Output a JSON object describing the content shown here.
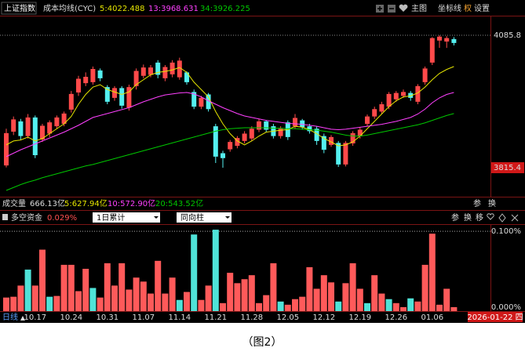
{
  "chart_data": [
    {
      "type": "candlestick",
      "symbol": "上证指数",
      "indicator": "成本均线(CYC)",
      "categories": [
        null,
        null,
        null,
        null,
        "10.17",
        null,
        null,
        null,
        null,
        "10.24",
        null,
        null,
        null,
        null,
        "10.31",
        null,
        null,
        null,
        null,
        "11.07",
        null,
        null,
        null,
        null,
        "11.14",
        null,
        null,
        null,
        null,
        "11.21",
        null,
        null,
        null,
        null,
        "11.28",
        null,
        null,
        null,
        null,
        "12.05",
        null,
        null,
        null,
        null,
        "12.12",
        null,
        null,
        null,
        null,
        "12.19",
        null,
        null,
        null,
        null,
        "12.26",
        null,
        null,
        null,
        null,
        "01.06",
        null,
        null,
        null
      ],
      "open": [
        3820,
        3889,
        3910,
        3880,
        3918,
        3873,
        3885,
        3900,
        3905,
        3934,
        3969,
        3988,
        3990,
        4014,
        3980,
        3958,
        3978,
        3938,
        3982,
        4003,
        4005,
        4030,
        3998,
        4006,
        4000,
        4010,
        3970,
        3940,
        3965,
        3900,
        3845,
        3853,
        3860,
        3870,
        3875,
        3893,
        3910,
        3900,
        3880,
        3908,
        3900,
        3912,
        3900,
        3895,
        3880,
        3862,
        3866,
        3822,
        3865,
        3880,
        3905,
        3920,
        3930,
        3940,
        3955,
        3962,
        3968,
        3950,
        3990,
        4030,
        4075,
        4073,
        4078
      ],
      "high": [
        3895,
        3920,
        3915,
        3925,
        3922,
        3905,
        3912,
        3922,
        3930,
        3972,
        4003,
        4010,
        4022,
        4018,
        3984,
        3982,
        3982,
        3985,
        4018,
        4026,
        4025,
        4035,
        4025,
        4035,
        4040,
        4012,
        3975,
        3962,
        3968,
        3905,
        3850,
        3872,
        3880,
        3890,
        3900,
        3915,
        3913,
        3905,
        3900,
        3912,
        3925,
        3915,
        3905,
        3900,
        3885,
        3882,
        3870,
        3870,
        3890,
        3898,
        3924,
        3940,
        3950,
        3970,
        3972,
        3975,
        3972,
        3986,
        4022,
        4082,
        4085.8,
        4084,
        4082
      ],
      "low": [
        3816,
        3882,
        3872,
        3875,
        3835,
        3868,
        3878,
        3895,
        3900,
        3928,
        3962,
        3982,
        3985,
        3992,
        3945,
        3952,
        3936,
        3932,
        3975,
        3998,
        4000,
        3998,
        3992,
        4000,
        3995,
        3985,
        3935,
        3935,
        3930,
        3825,
        3815.4,
        3848,
        3855,
        3865,
        3870,
        3888,
        3888,
        3875,
        3875,
        3872,
        3895,
        3893,
        3885,
        3862,
        3845,
        3858,
        3817,
        3818,
        3860,
        3875,
        3900,
        3915,
        3925,
        3935,
        3950,
        3958,
        3952,
        3945,
        3985,
        4025,
        4060,
        4060,
        4065
      ],
      "close": [
        3886,
        3914,
        3880,
        3918,
        3841,
        3901,
        3908,
        3918,
        3926,
        3966,
        3997,
        4001,
        4017,
        3998,
        3950,
        3978,
        3942,
        3980,
        4013,
        4020,
        4020,
        4005,
        4021,
        4030,
        4034,
        3990,
        3940,
        3958,
        3935,
        3838,
        3835,
        3868,
        3876,
        3885,
        3895,
        3910,
        3893,
        3880,
        3895,
        3878,
        3917,
        3898,
        3890,
        3870,
        3852,
        3878,
        3822,
        3866,
        3886,
        3893,
        3920,
        3935,
        3945,
        3966,
        3968,
        3970,
        3958,
        3982,
        4018,
        4080,
        4083,
        4080,
        4070
      ],
      "up_color": "#ff4a4a",
      "down_color": "#54f0f0",
      "series": [
        {
          "name": "5:4022.488",
          "color": "#e6e600",
          "values": [
            3862,
            3870,
            3872,
            3878,
            3870,
            3875,
            3885,
            3895,
            3905,
            3920,
            3945,
            3965,
            3980,
            3985,
            3975,
            3970,
            3965,
            3970,
            3985,
            3995,
            4005,
            4010,
            4012,
            4015,
            4020,
            4010,
            3990,
            3975,
            3960,
            3930,
            3905,
            3885,
            3870,
            3862,
            3870,
            3880,
            3888,
            3890,
            3892,
            3893,
            3900,
            3898,
            3893,
            3885,
            3875,
            3868,
            3860,
            3862,
            3868,
            3880,
            3895,
            3910,
            3925,
            3940,
            3952,
            3960,
            3962,
            3968,
            3980,
            3995,
            4008,
            4016,
            4022
          ]
        },
        {
          "name": "13:3968.631",
          "color": "#ff40ff",
          "values": [
            3838,
            3845,
            3852,
            3858,
            3864,
            3870,
            3876,
            3882,
            3888,
            3895,
            3902,
            3910,
            3918,
            3922,
            3926,
            3930,
            3934,
            3938,
            3944,
            3950,
            3955,
            3960,
            3964,
            3966,
            3968,
            3969,
            3966,
            3960,
            3952,
            3945,
            3938,
            3932,
            3926,
            3921,
            3918,
            3915,
            3912,
            3910,
            3908,
            3906,
            3905,
            3904,
            3902,
            3900,
            3897,
            3894,
            3893,
            3894,
            3896,
            3898,
            3900,
            3902,
            3904,
            3907,
            3910,
            3914,
            3918,
            3925,
            3935,
            3948,
            3958,
            3965,
            3969
          ]
        },
        {
          "name": "34:3926.225",
          "color": "#00c800",
          "values": [
            3769,
            3775,
            3781,
            3786,
            3790,
            3795,
            3799,
            3803,
            3807,
            3811,
            3815,
            3819,
            3822,
            3826,
            3830,
            3834,
            3838,
            3842,
            3846,
            3850,
            3854,
            3858,
            3862,
            3866,
            3870,
            3874,
            3878,
            3882,
            3886,
            3890,
            3893,
            3895,
            3896,
            3897,
            3897,
            3897,
            3897,
            3896,
            3896,
            3895,
            3895,
            3894,
            3893,
            3892,
            3890,
            3888,
            3885,
            3882,
            3880,
            3880,
            3882,
            3885,
            3888,
            3891,
            3894,
            3897,
            3900,
            3903,
            3907,
            3912,
            3917,
            3922,
            3926
          ]
        }
      ],
      "ylim": [
        3757.8,
        4125.8
      ],
      "yticks": [
        4085.8,
        3815.4
      ]
    },
    {
      "type": "bar",
      "title": "多空资金",
      "value_label": "0.029%",
      "dropdowns": [
        "1日累计",
        "同向柱"
      ],
      "values": [
        0.017,
        0.018,
        0.032,
        0.052,
        0.032,
        0.077,
        0.018,
        0.019,
        0.058,
        0.058,
        0.025,
        0.053,
        0.029,
        0.017,
        0.06,
        0.032,
        0.06,
        0.027,
        0.042,
        0.037,
        0.022,
        0.063,
        0.022,
        0.042,
        0.014,
        0.024,
        0.096,
        0.014,
        0.032,
        0.102,
        0.01,
        0.048,
        0.035,
        0.04,
        0.045,
        0.01,
        0.02,
        0.06,
        0.012,
        0.008,
        0.015,
        0.018,
        0.055,
        0.028,
        0.045,
        0.036,
        0.012,
        0.035,
        0.06,
        0.028,
        0.01,
        0.045,
        0.022,
        0.015,
        0.01,
        0.005,
        0.016,
        0.012,
        0.058,
        0.097,
        0.008,
        0.028,
        0.005
      ],
      "colors": [
        "#ff5a5a",
        "#ff5a5a",
        "#ff5a5a",
        "#4fe3d8",
        "#ff5a5a",
        "#ff5a5a",
        "#4fe3d8",
        "#ff5a5a",
        "#ff5a5a",
        "#ff5a5a",
        "#ff5a5a",
        "#ff5a5a",
        "#4fe3d8",
        "#ff5a5a",
        "#ff5a5a",
        "#ff5a5a",
        "#ff5a5a",
        "#ff5a5a",
        "#ff5a5a",
        "#ff5a5a",
        "#ff5a5a",
        "#ff5a5a",
        "#ff5a5a",
        "#ff5a5a",
        "#4fe3d8",
        "#ff5a5a",
        "#4fe3d8",
        "#ff5a5a",
        "#ff5a5a",
        "#4fe3d8",
        "#ff5a5a",
        "#ff5a5a",
        "#ff5a5a",
        "#ff5a5a",
        "#ff5a5a",
        "#ff5a5a",
        "#ff5a5a",
        "#ff5a5a",
        "#4fe3d8",
        "#ff5a5a",
        "#ff5a5a",
        "#ff5a5a",
        "#ff5a5a",
        "#ff5a5a",
        "#ff5a5a",
        "#ff5a5a",
        "#4fe3d8",
        "#ff5a5a",
        "#ff5a5a",
        "#ff5a5a",
        "#4fe3d8",
        "#ff5a5a",
        "#ff5a5a",
        "#4fe3d8",
        "#ff5a5a",
        "#ff5a5a",
        "#4fe3d8",
        "#ff5a5a",
        "#ff5a5a",
        "#ff5a5a",
        "#ff5a5a",
        "#ff5a5a",
        "#ff5a5a"
      ],
      "ylim": [
        0,
        0.108
      ],
      "yticks": [
        {
          "value": 0.1,
          "label": "0.100%"
        },
        {
          "value": 0,
          "label": "0.000%"
        }
      ]
    }
  ],
  "toolbar": {
    "main": "主图",
    "coord": "坐标线",
    "rights": "权",
    "settings": "设置"
  },
  "volume_header": {
    "label": "成交量",
    "total": "666.13亿",
    "ma": [
      {
        "text": "5:627.94亿",
        "color": "#e6e600"
      },
      {
        "text": "10:572.90亿",
        "color": "#ff40ff"
      },
      {
        "text": "20:543.52亿",
        "color": "#00c800"
      }
    ],
    "buttons": [
      "参",
      "换"
    ]
  },
  "lower_buttons": [
    "参",
    "换",
    "移"
  ],
  "x_axis": {
    "period": "日线",
    "cursor_date": "2026-01-22 四"
  },
  "caption": "（图2）"
}
